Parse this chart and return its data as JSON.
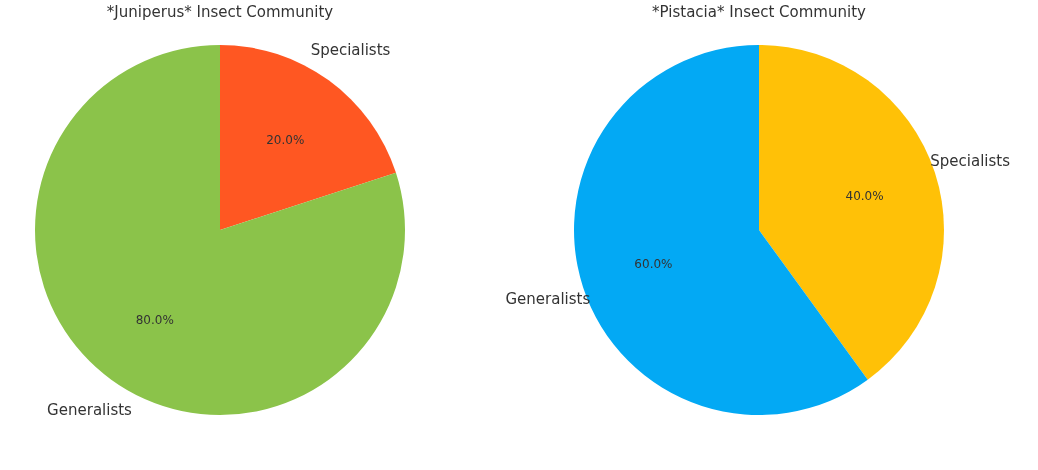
{
  "chart_data": [
    {
      "type": "pie",
      "title": "*Juniperus* Insect Community",
      "categories": [
        "Specialists",
        "Generalists"
      ],
      "values": [
        20,
        80
      ],
      "colors": [
        "#ff5722",
        "#8bc34a"
      ],
      "value_labels": [
        "20.0%",
        "80.0%"
      ],
      "legend": false
    },
    {
      "type": "pie",
      "title": "*Pistacia* Insect Community",
      "categories": [
        "Specialists",
        "Generalists"
      ],
      "values": [
        40,
        60
      ],
      "colors": [
        "#ffc107",
        "#03a9f4"
      ],
      "value_labels": [
        "40.0%",
        "60.0%"
      ],
      "legend": false
    }
  ]
}
